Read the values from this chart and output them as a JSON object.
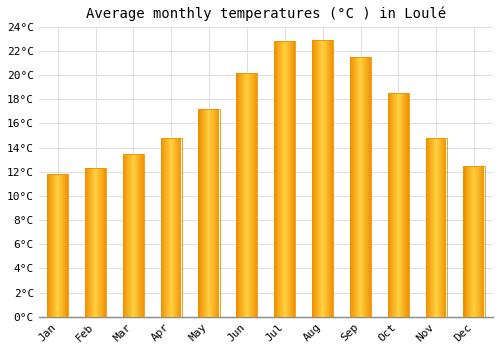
{
  "title": "Average monthly temperatures (°C ) in Loulé",
  "months": [
    "Jan",
    "Feb",
    "Mar",
    "Apr",
    "May",
    "Jun",
    "Jul",
    "Aug",
    "Sep",
    "Oct",
    "Nov",
    "Dec"
  ],
  "temperatures": [
    11.8,
    12.3,
    13.5,
    14.8,
    17.2,
    20.2,
    22.8,
    22.9,
    21.5,
    18.5,
    14.8,
    12.5
  ],
  "bar_color_center": "#FFD040",
  "bar_color_edge": "#F09000",
  "ylim": [
    0,
    24
  ],
  "ytick_step": 2,
  "background_color": "#FFFFFF",
  "grid_color": "#DDDDDD",
  "title_fontsize": 10,
  "tick_fontsize": 8,
  "font_family": "monospace",
  "bar_width": 0.55
}
